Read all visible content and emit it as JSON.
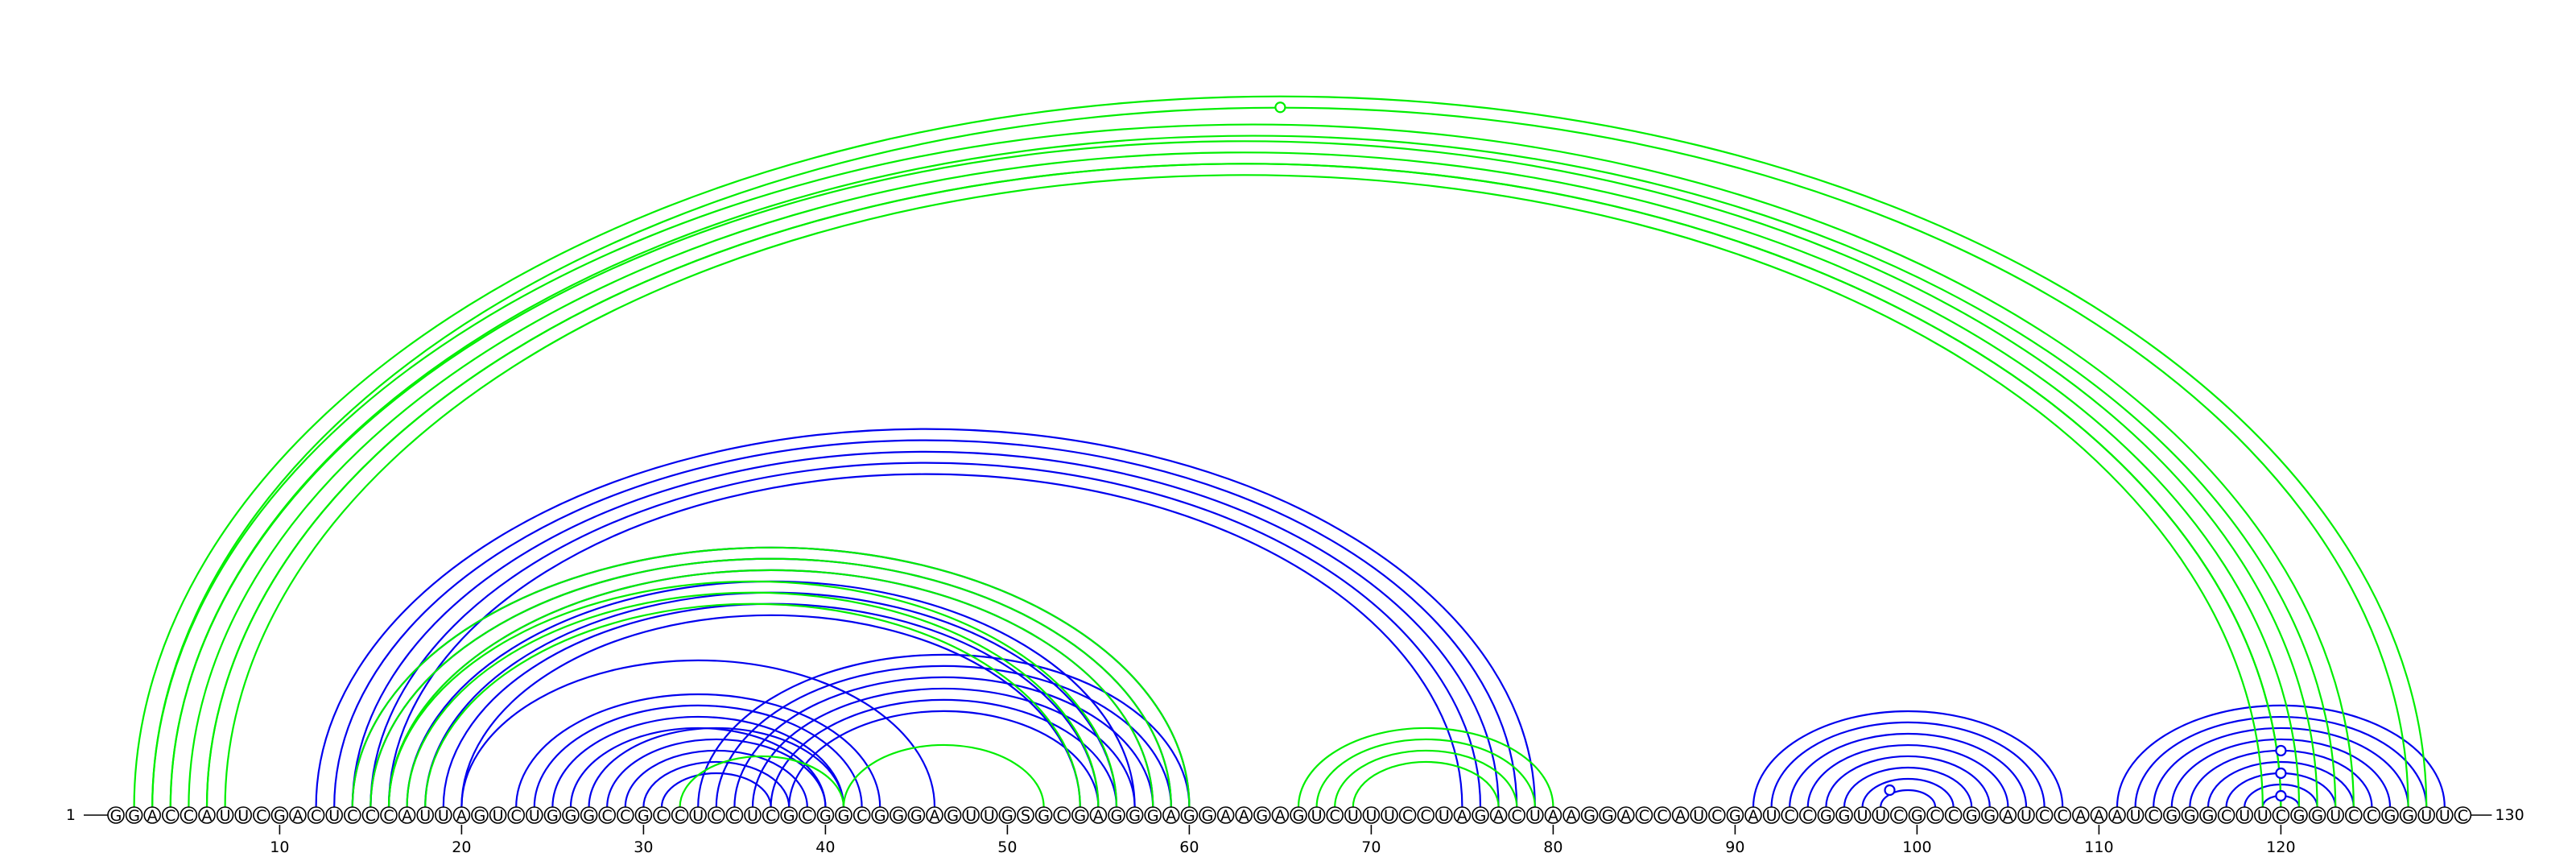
{
  "chart_data": {
    "type": "arc-diagram",
    "title": "",
    "sequence": "GGACCAUUCGACUCCCAUUAGUCUGGGCCGCCUCCUCGCGGCGGGAGUUGSGCGAGGGAGGAAGAGUCUUUCCUAGACUAAGGACCAUCGAUCCGGUUCGCCGGAUCCAAAUCGGGCUUCGGUCCGGUUC",
    "length": 130,
    "start_label": "1",
    "end_label": "130",
    "ticks": [
      10,
      20,
      30,
      40,
      50,
      60,
      70,
      80,
      90,
      100,
      110,
      120
    ],
    "series": [
      {
        "color": "#0000ee",
        "stems": [
          {
            "i": 12,
            "j": 79,
            "n": 1
          },
          {
            "i": 13,
            "j": 78,
            "n": 4
          },
          {
            "i": 14,
            "j": 60,
            "n": 1
          },
          {
            "i": 15,
            "j": 59,
            "n": 6
          },
          {
            "i": 20,
            "j": 46,
            "n": 1
          },
          {
            "i": 23,
            "j": 43,
            "n": 4
          },
          {
            "i": 27,
            "j": 41,
            "n": 5
          },
          {
            "i": 33,
            "j": 60,
            "n": 5
          },
          {
            "i": 38,
            "j": 55,
            "n": 1
          },
          {
            "i": 91,
            "j": 108,
            "n": 8
          },
          {
            "i": 111,
            "j": 129,
            "n": 9
          }
        ],
        "hairpin_markers": [
          98.5,
          120,
          120,
          120
        ]
      },
      {
        "color": "#00ee00",
        "stems": [
          {
            "i": 2,
            "j": 128,
            "n": 2
          },
          {
            "i": 3,
            "j": 124,
            "n": 2
          },
          {
            "i": 4,
            "j": 122,
            "n": 3
          },
          {
            "i": 6,
            "j": 120,
            "n": 2
          },
          {
            "i": 14,
            "j": 60,
            "n": 3
          },
          {
            "i": 16,
            "j": 56,
            "n": 3
          },
          {
            "i": 32,
            "j": 41,
            "n": 1
          },
          {
            "i": 41,
            "j": 52,
            "n": 1
          },
          {
            "i": 66,
            "j": 80,
            "n": 4
          }
        ],
        "hairpin_markers": [
          65
        ]
      }
    ]
  }
}
